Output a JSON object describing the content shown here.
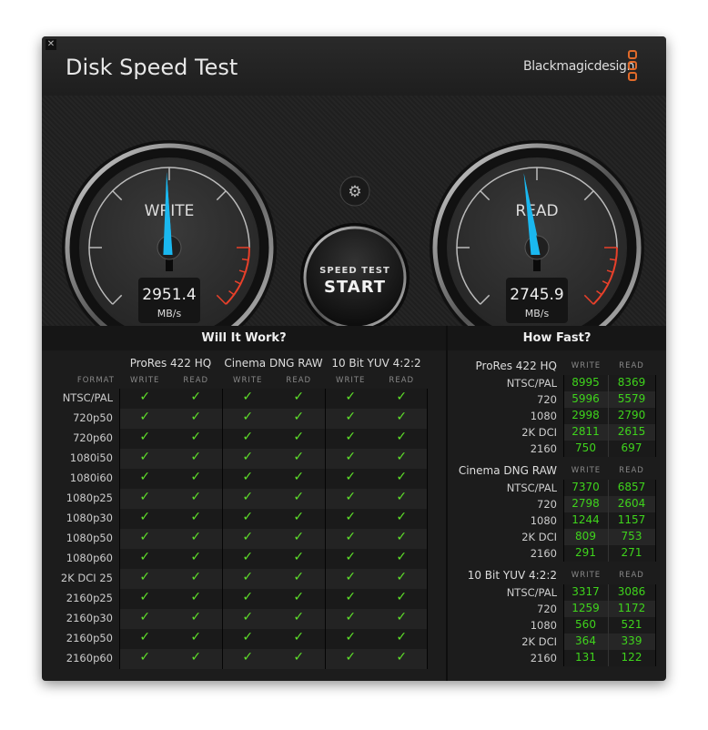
{
  "window": {
    "title": "Disk Speed Test",
    "brand": "Blackmagicdesign",
    "close_icon": "close-icon"
  },
  "gauges": {
    "write": {
      "label": "WRITE",
      "value": "2951.4",
      "unit": "MB/s",
      "needle_color": "#1ab8f0"
    },
    "read": {
      "label": "READ",
      "value": "2745.9",
      "unit": "MB/s",
      "needle_color": "#1ab8f0"
    }
  },
  "start_button": {
    "line1": "SPEED TEST",
    "line2": "START"
  },
  "settings_icon": "gear-icon",
  "will_it_work": {
    "title": "Will It Work?",
    "format_label": "FORMAT",
    "codecs": [
      "ProRes 422 HQ",
      "Cinema DNG RAW",
      "10 Bit YUV 4:2:2"
    ],
    "subcols": [
      "WRITE",
      "READ"
    ],
    "formats": [
      "NTSC/PAL",
      "720p50",
      "720p60",
      "1080i50",
      "1080i60",
      "1080p25",
      "1080p30",
      "1080p50",
      "1080p60",
      "2K DCI 25",
      "2160p25",
      "2160p30",
      "2160p50",
      "2160p60"
    ],
    "all_supported": true,
    "check_color": "#5fe02a"
  },
  "how_fast": {
    "title": "How Fast?",
    "subcols": [
      "WRITE",
      "READ"
    ],
    "groups": [
      {
        "name": "ProRes 422 HQ",
        "rows": [
          [
            "NTSC/PAL",
            "8995",
            "8369"
          ],
          [
            "720",
            "5996",
            "5579"
          ],
          [
            "1080",
            "2998",
            "2790"
          ],
          [
            "2K DCI",
            "2811",
            "2615"
          ],
          [
            "2160",
            "750",
            "697"
          ]
        ]
      },
      {
        "name": "Cinema DNG RAW",
        "rows": [
          [
            "NTSC/PAL",
            "7370",
            "6857"
          ],
          [
            "720",
            "2798",
            "2604"
          ],
          [
            "1080",
            "1244",
            "1157"
          ],
          [
            "2K DCI",
            "809",
            "753"
          ],
          [
            "2160",
            "291",
            "271"
          ]
        ]
      },
      {
        "name": "10 Bit YUV 4:2:2",
        "rows": [
          [
            "NTSC/PAL",
            "3317",
            "3086"
          ],
          [
            "720",
            "1259",
            "1172"
          ],
          [
            "1080",
            "560",
            "521"
          ],
          [
            "2K DCI",
            "364",
            "339"
          ],
          [
            "2160",
            "131",
            "122"
          ]
        ]
      }
    ],
    "value_color": "#3fd41c"
  }
}
